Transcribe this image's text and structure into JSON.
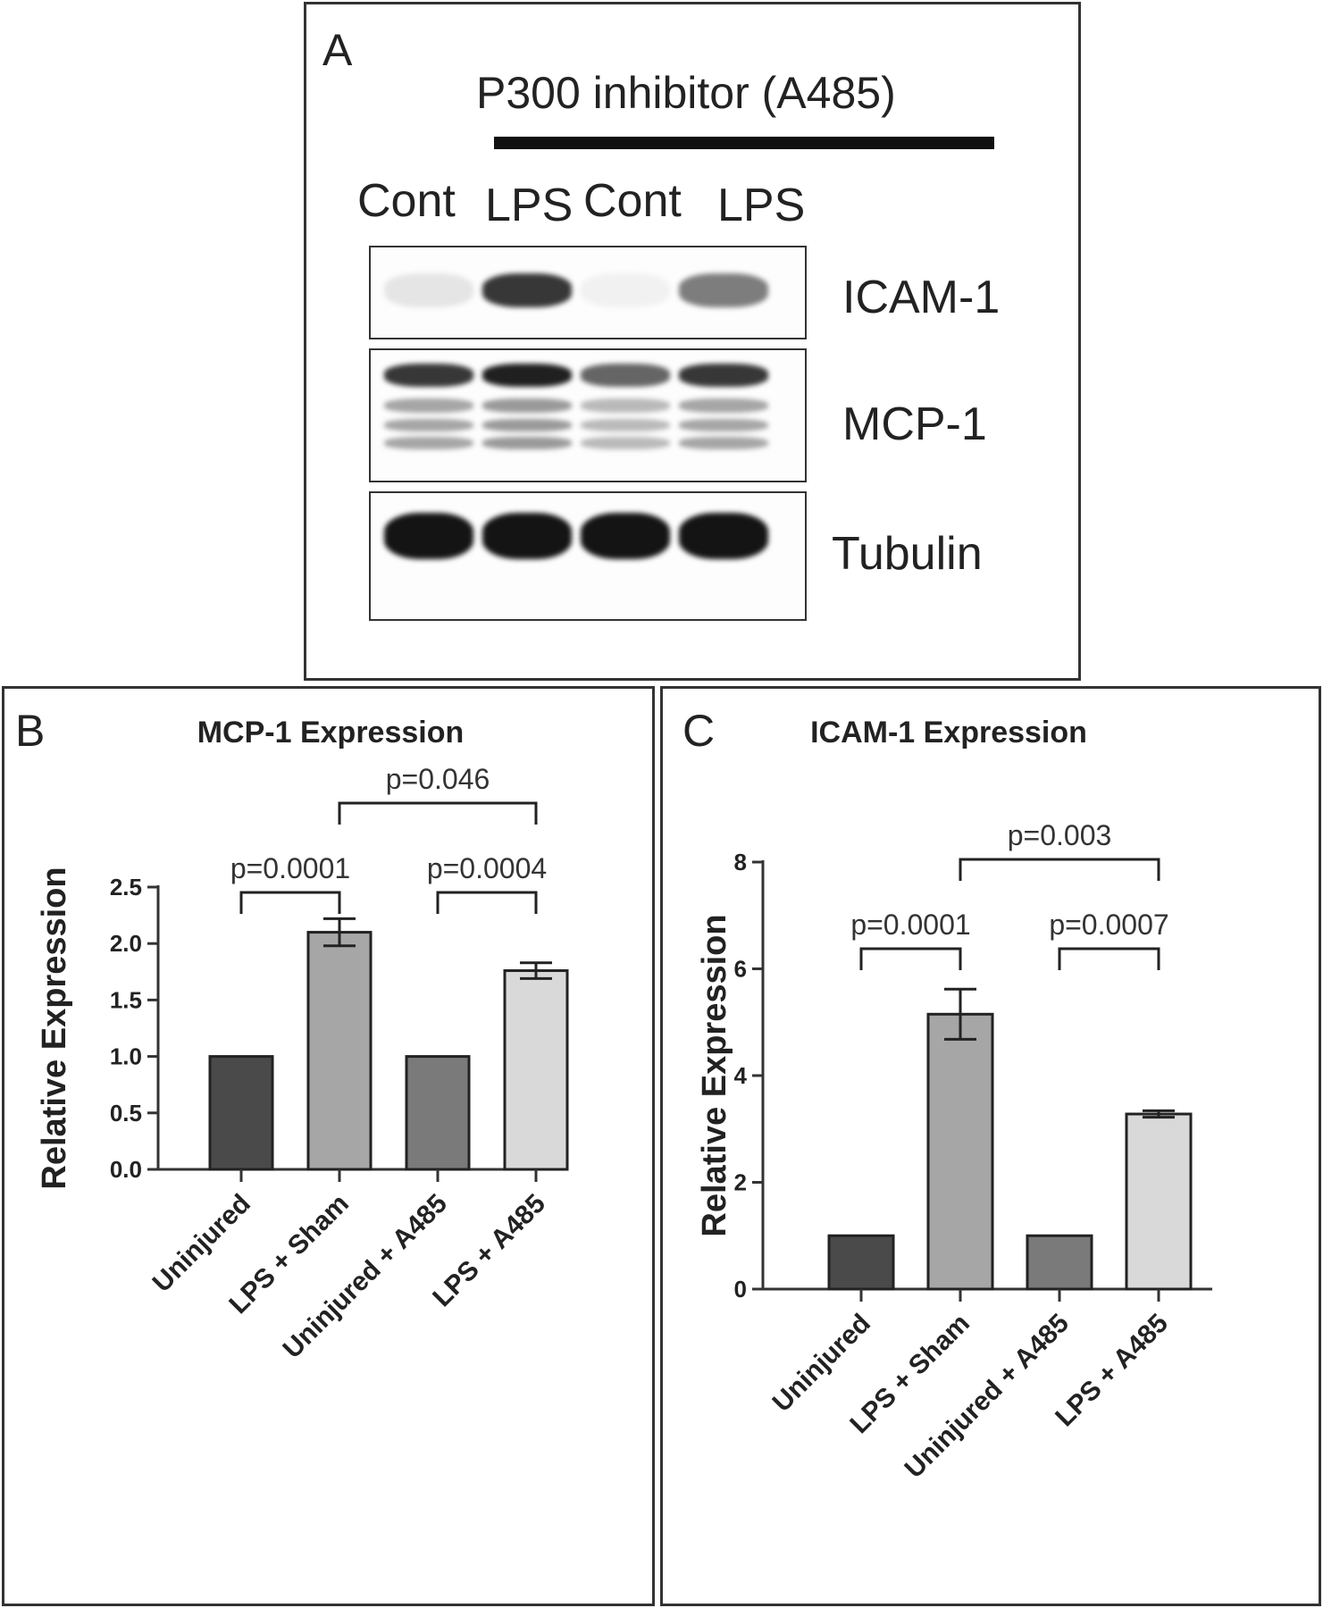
{
  "panel_a": {
    "letter": "A",
    "inhibitor_label": "P300 inhibitor (A485)",
    "lanes": [
      "Cont",
      "LPS",
      "Cont",
      "LPS"
    ],
    "blots": [
      {
        "label": "ICAM-1",
        "intensities": [
          0.1,
          0.85,
          0.05,
          0.55
        ]
      },
      {
        "label": "MCP-1",
        "intensities": [
          0.85,
          0.95,
          0.65,
          0.85
        ]
      },
      {
        "label": "Tubulin",
        "intensities": [
          1.0,
          1.0,
          1.0,
          1.0
        ]
      }
    ]
  },
  "chart_data": [
    {
      "type": "bar",
      "panel": "B",
      "title": "MCP-1 Expression",
      "ylabel": "Relative Expression",
      "xlabel": "",
      "categories": [
        "Uninjured",
        "LPS + Sham",
        "Uninjured + A485",
        "LPS + A485"
      ],
      "values": [
        1.0,
        2.1,
        1.0,
        1.76
      ],
      "errors": [
        0,
        0.12,
        0,
        0.07
      ],
      "ylim": [
        0,
        2.5
      ],
      "yticks": [
        0.0,
        0.5,
        1.0,
        1.5,
        2.0,
        2.5
      ],
      "ytick_labels": [
        "0.0",
        "0.5",
        "1.0",
        "1.5",
        "2.0",
        "2.5"
      ],
      "colors": [
        "#4a4a4a",
        "#a6a6a6",
        "#7a7a7a",
        "#d9d9d9"
      ],
      "comparisons": [
        {
          "from": 0,
          "to": 1,
          "label": "p=0.0001",
          "level": 0
        },
        {
          "from": 2,
          "to": 3,
          "label": "p=0.0004",
          "level": 0
        },
        {
          "from": 1,
          "to": 3,
          "label": "p=0.046",
          "level": 1
        }
      ]
    },
    {
      "type": "bar",
      "panel": "C",
      "title": "ICAM-1 Expression",
      "ylabel": "Relative Expression",
      "xlabel": "",
      "categories": [
        "Uninjured",
        "LPS + Sham",
        "Uninjured + A485",
        "LPS + A485"
      ],
      "values": [
        1.0,
        5.15,
        1.0,
        3.28
      ],
      "errors": [
        0,
        0.47,
        0,
        0.06
      ],
      "ylim": [
        0,
        8
      ],
      "yticks": [
        0,
        2,
        4,
        6,
        8
      ],
      "ytick_labels": [
        "0",
        "2",
        "4",
        "6",
        "8"
      ],
      "colors": [
        "#4a4a4a",
        "#a6a6a6",
        "#7a7a7a",
        "#d9d9d9"
      ],
      "comparisons": [
        {
          "from": 0,
          "to": 1,
          "label": "p=0.0001",
          "level": 0
        },
        {
          "from": 2,
          "to": 3,
          "label": "p=0.0007",
          "level": 0
        },
        {
          "from": 1,
          "to": 3,
          "label": "p=0.003",
          "level": 1
        }
      ]
    }
  ]
}
